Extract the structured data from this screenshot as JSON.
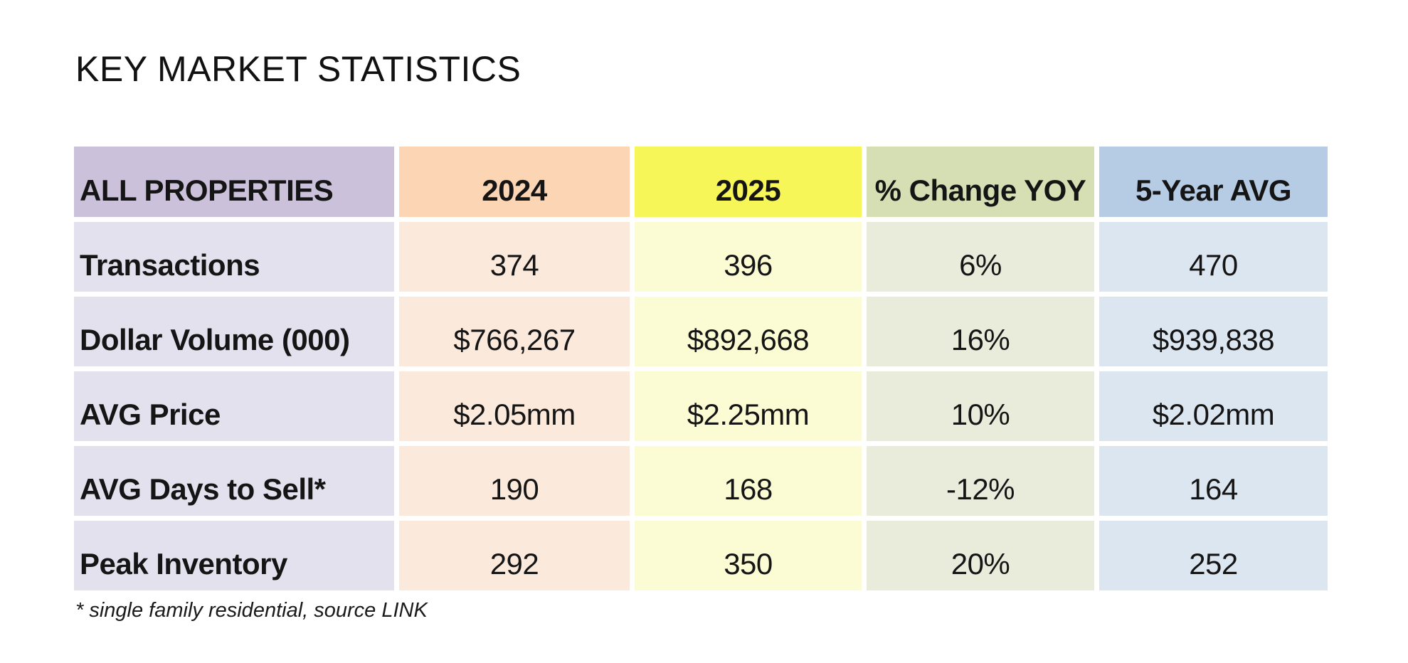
{
  "title": "KEY MARKET STATISTICS",
  "footnote": "* single family residential, source LINK",
  "colors": {
    "background": "#ffffff",
    "text": "#151515",
    "gutter": "#ffffff"
  },
  "table": {
    "columns": [
      {
        "label": "ALL PROPERTIES",
        "header_bg": "#ccc1da",
        "row_bg": "#e4e1ee"
      },
      {
        "label": "2024",
        "header_bg": "#fcd5b4",
        "row_bg": "#fbe9db"
      },
      {
        "label": "2025",
        "header_bg": "#f7f659",
        "row_bg": "#fcfcd4"
      },
      {
        "label": "% Change YOY",
        "header_bg": "#d6dfb3",
        "row_bg": "#e9ecdb"
      },
      {
        "label": "5-Year AVG",
        "header_bg": "#b5cce4",
        "row_bg": "#dce6f1"
      }
    ],
    "rows": [
      {
        "label": "Transactions",
        "values": [
          "374",
          "396",
          "6%",
          "470"
        ]
      },
      {
        "label": "Dollar Volume (000)",
        "values": [
          "$766,267",
          "$892,668",
          "16%",
          "$939,838"
        ]
      },
      {
        "label": "AVG Price",
        "values": [
          "$2.05mm",
          "$2.25mm",
          "10%",
          "$2.02mm"
        ]
      },
      {
        "label": "AVG Days to Sell*",
        "values": [
          "190",
          "168",
          "-12%",
          "164"
        ]
      },
      {
        "label": "Peak Inventory",
        "values": [
          "292",
          "350",
          "20%",
          "252"
        ]
      }
    ]
  },
  "chart_data": {
    "type": "table",
    "title": "KEY MARKET STATISTICS",
    "columns": [
      "ALL PROPERTIES",
      "2024",
      "2025",
      "% Change YOY",
      "5-Year AVG"
    ],
    "rows": [
      [
        "Transactions",
        "374",
        "396",
        "6%",
        "470"
      ],
      [
        "Dollar Volume (000)",
        "$766,267",
        "$892,668",
        "16%",
        "$939,838"
      ],
      [
        "AVG Price",
        "$2.05mm",
        "$2.25mm",
        "10%",
        "$2.02mm"
      ],
      [
        "AVG Days to Sell*",
        "190",
        "168",
        "-12%",
        "164"
      ],
      [
        "Peak Inventory",
        "292",
        "350",
        "20%",
        "252"
      ]
    ],
    "footnote": "* single family residential, source LINK",
    "layout": {
      "grid": "white gutters between color-tinted cells",
      "legend": "none"
    }
  }
}
